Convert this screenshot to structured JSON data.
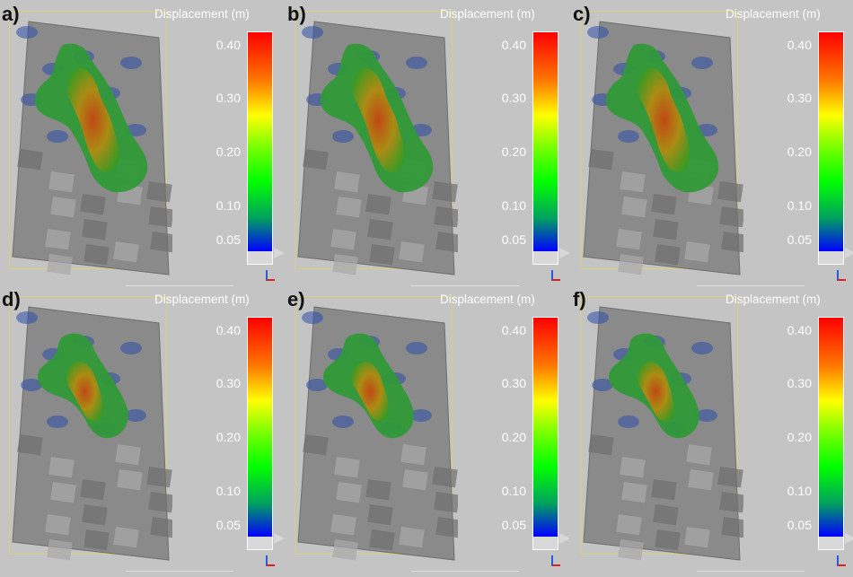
{
  "panels": [
    {
      "label": "a)",
      "variant": 0
    },
    {
      "label": "b)",
      "variant": 0
    },
    {
      "label": "c)",
      "variant": 0
    },
    {
      "label": "d)",
      "variant": 1
    },
    {
      "label": "e)",
      "variant": 1
    },
    {
      "label": "f)",
      "variant": 1
    }
  ],
  "colorbar": {
    "title": "Displacement (m)",
    "ticks": [
      {
        "label": "0.40",
        "value": 0.4
      },
      {
        "label": "0.30",
        "value": 0.3
      },
      {
        "label": "0.20",
        "value": 0.2
      },
      {
        "label": "0.10",
        "value": 0.1
      },
      {
        "label": "0.05",
        "value": 0.05
      }
    ],
    "colors": [
      "#0000ff",
      "#00a060",
      "#00ff00",
      "#7dff00",
      "#ffff00",
      "#ff7800",
      "#ff0000"
    ]
  },
  "colors": {
    "background": "#c4c4c4",
    "terrain": "#8a8a8a",
    "frame": "#d8cf7a"
  }
}
